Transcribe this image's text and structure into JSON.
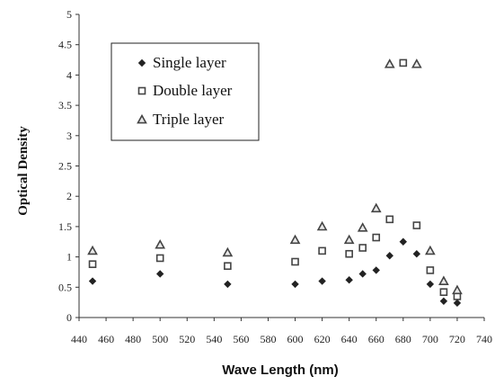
{
  "chart_data": {
    "type": "scatter",
    "xlabel": "Wave Length (nm)",
    "ylabel": "Optical Density",
    "xlim": [
      440,
      740
    ],
    "ylim": [
      0,
      5
    ],
    "xticks": [
      "440",
      "460",
      "480",
      "500",
      "520",
      "540",
      "560",
      "580",
      "600",
      "620",
      "640",
      "660",
      "680",
      "700",
      "720",
      "740"
    ],
    "yticks": [
      "0",
      "0.5",
      "1",
      "1.5",
      "2",
      "2.5",
      "3",
      "3.5",
      "4",
      "4.5",
      "5"
    ],
    "grid": false,
    "legend": "top-left",
    "series": [
      {
        "name": "Single layer",
        "marker": "diamond",
        "color": "#222222",
        "x": [
          450,
          500,
          550,
          600,
          620,
          640,
          650,
          660,
          670,
          680,
          690,
          700,
          710,
          720
        ],
        "y": [
          0.6,
          0.72,
          0.55,
          0.55,
          0.6,
          0.62,
          0.72,
          0.78,
          1.02,
          1.25,
          1.05,
          0.55,
          0.27,
          0.24
        ]
      },
      {
        "name": "Double layer",
        "marker": "square",
        "color": "#444444",
        "x": [
          450,
          500,
          550,
          600,
          620,
          640,
          650,
          660,
          670,
          680,
          690,
          700,
          710,
          720
        ],
        "y": [
          0.88,
          0.98,
          0.85,
          0.92,
          1.1,
          1.05,
          1.15,
          1.32,
          1.62,
          4.2,
          1.52,
          0.78,
          0.42,
          0.35
        ]
      },
      {
        "name": "Triple layer",
        "marker": "triangle",
        "color": "#444444",
        "x": [
          450,
          500,
          550,
          600,
          620,
          640,
          650,
          660,
          670,
          690,
          700,
          710,
          720
        ],
        "y": [
          1.1,
          1.2,
          1.07,
          1.28,
          1.5,
          1.28,
          1.48,
          1.8,
          4.18,
          4.18,
          1.1,
          0.6,
          0.45
        ]
      }
    ]
  }
}
